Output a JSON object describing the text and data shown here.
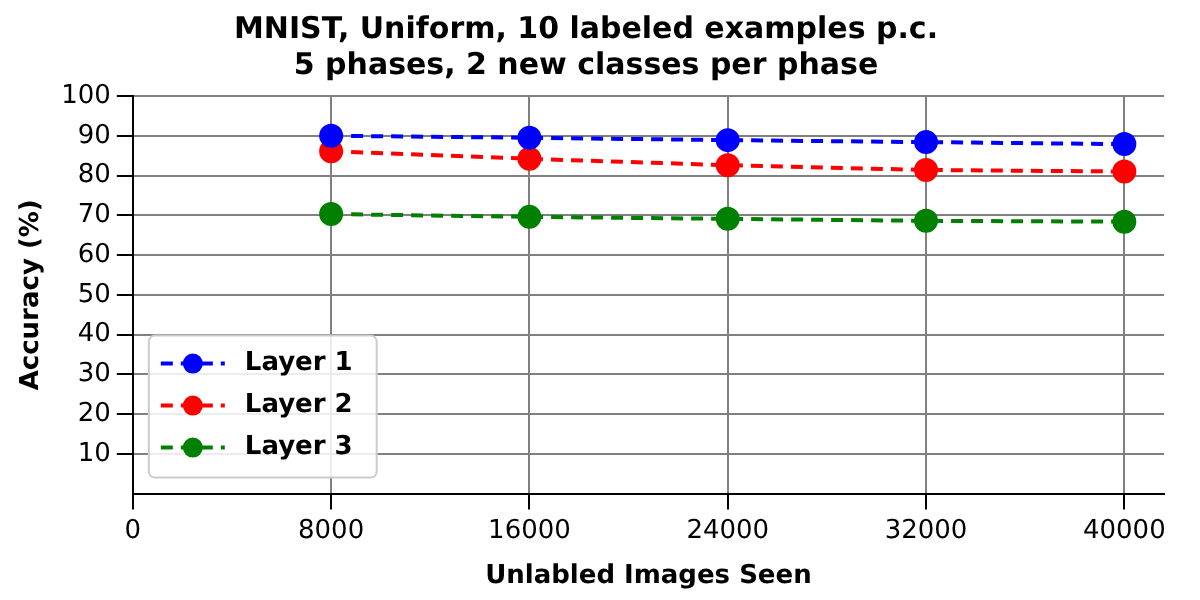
{
  "chart_data": {
    "type": "line",
    "title": "MNIST, Uniform, 10 labeled examples p.c.\n5 phases, 2 new classes per phase",
    "xlabel": "Unlabled Images Seen",
    "ylabel": "Accuracy (%)",
    "x": [
      8000,
      16000,
      24000,
      32000,
      40000
    ],
    "series": [
      {
        "name": "Layer 1",
        "color": "#0000ff",
        "values": [
          90.0,
          89.5,
          88.9,
          88.4,
          87.9
        ]
      },
      {
        "name": "Layer 2",
        "color": "#ff0000",
        "values": [
          86.1,
          84.2,
          82.6,
          81.4,
          81.0
        ]
      },
      {
        "name": "Layer 3",
        "color": "#008000",
        "values": [
          70.3,
          69.6,
          69.1,
          68.6,
          68.4
        ]
      }
    ],
    "xlim": [
      0,
      41600
    ],
    "xticks": [
      0,
      8000,
      16000,
      24000,
      32000,
      40000
    ],
    "ylim": [
      0,
      100
    ],
    "yticks": [
      10,
      20,
      30,
      40,
      50,
      60,
      70,
      80,
      90,
      100
    ],
    "grid": true,
    "legend": "bottom left",
    "marker": "circle",
    "line_style": "dashed"
  }
}
